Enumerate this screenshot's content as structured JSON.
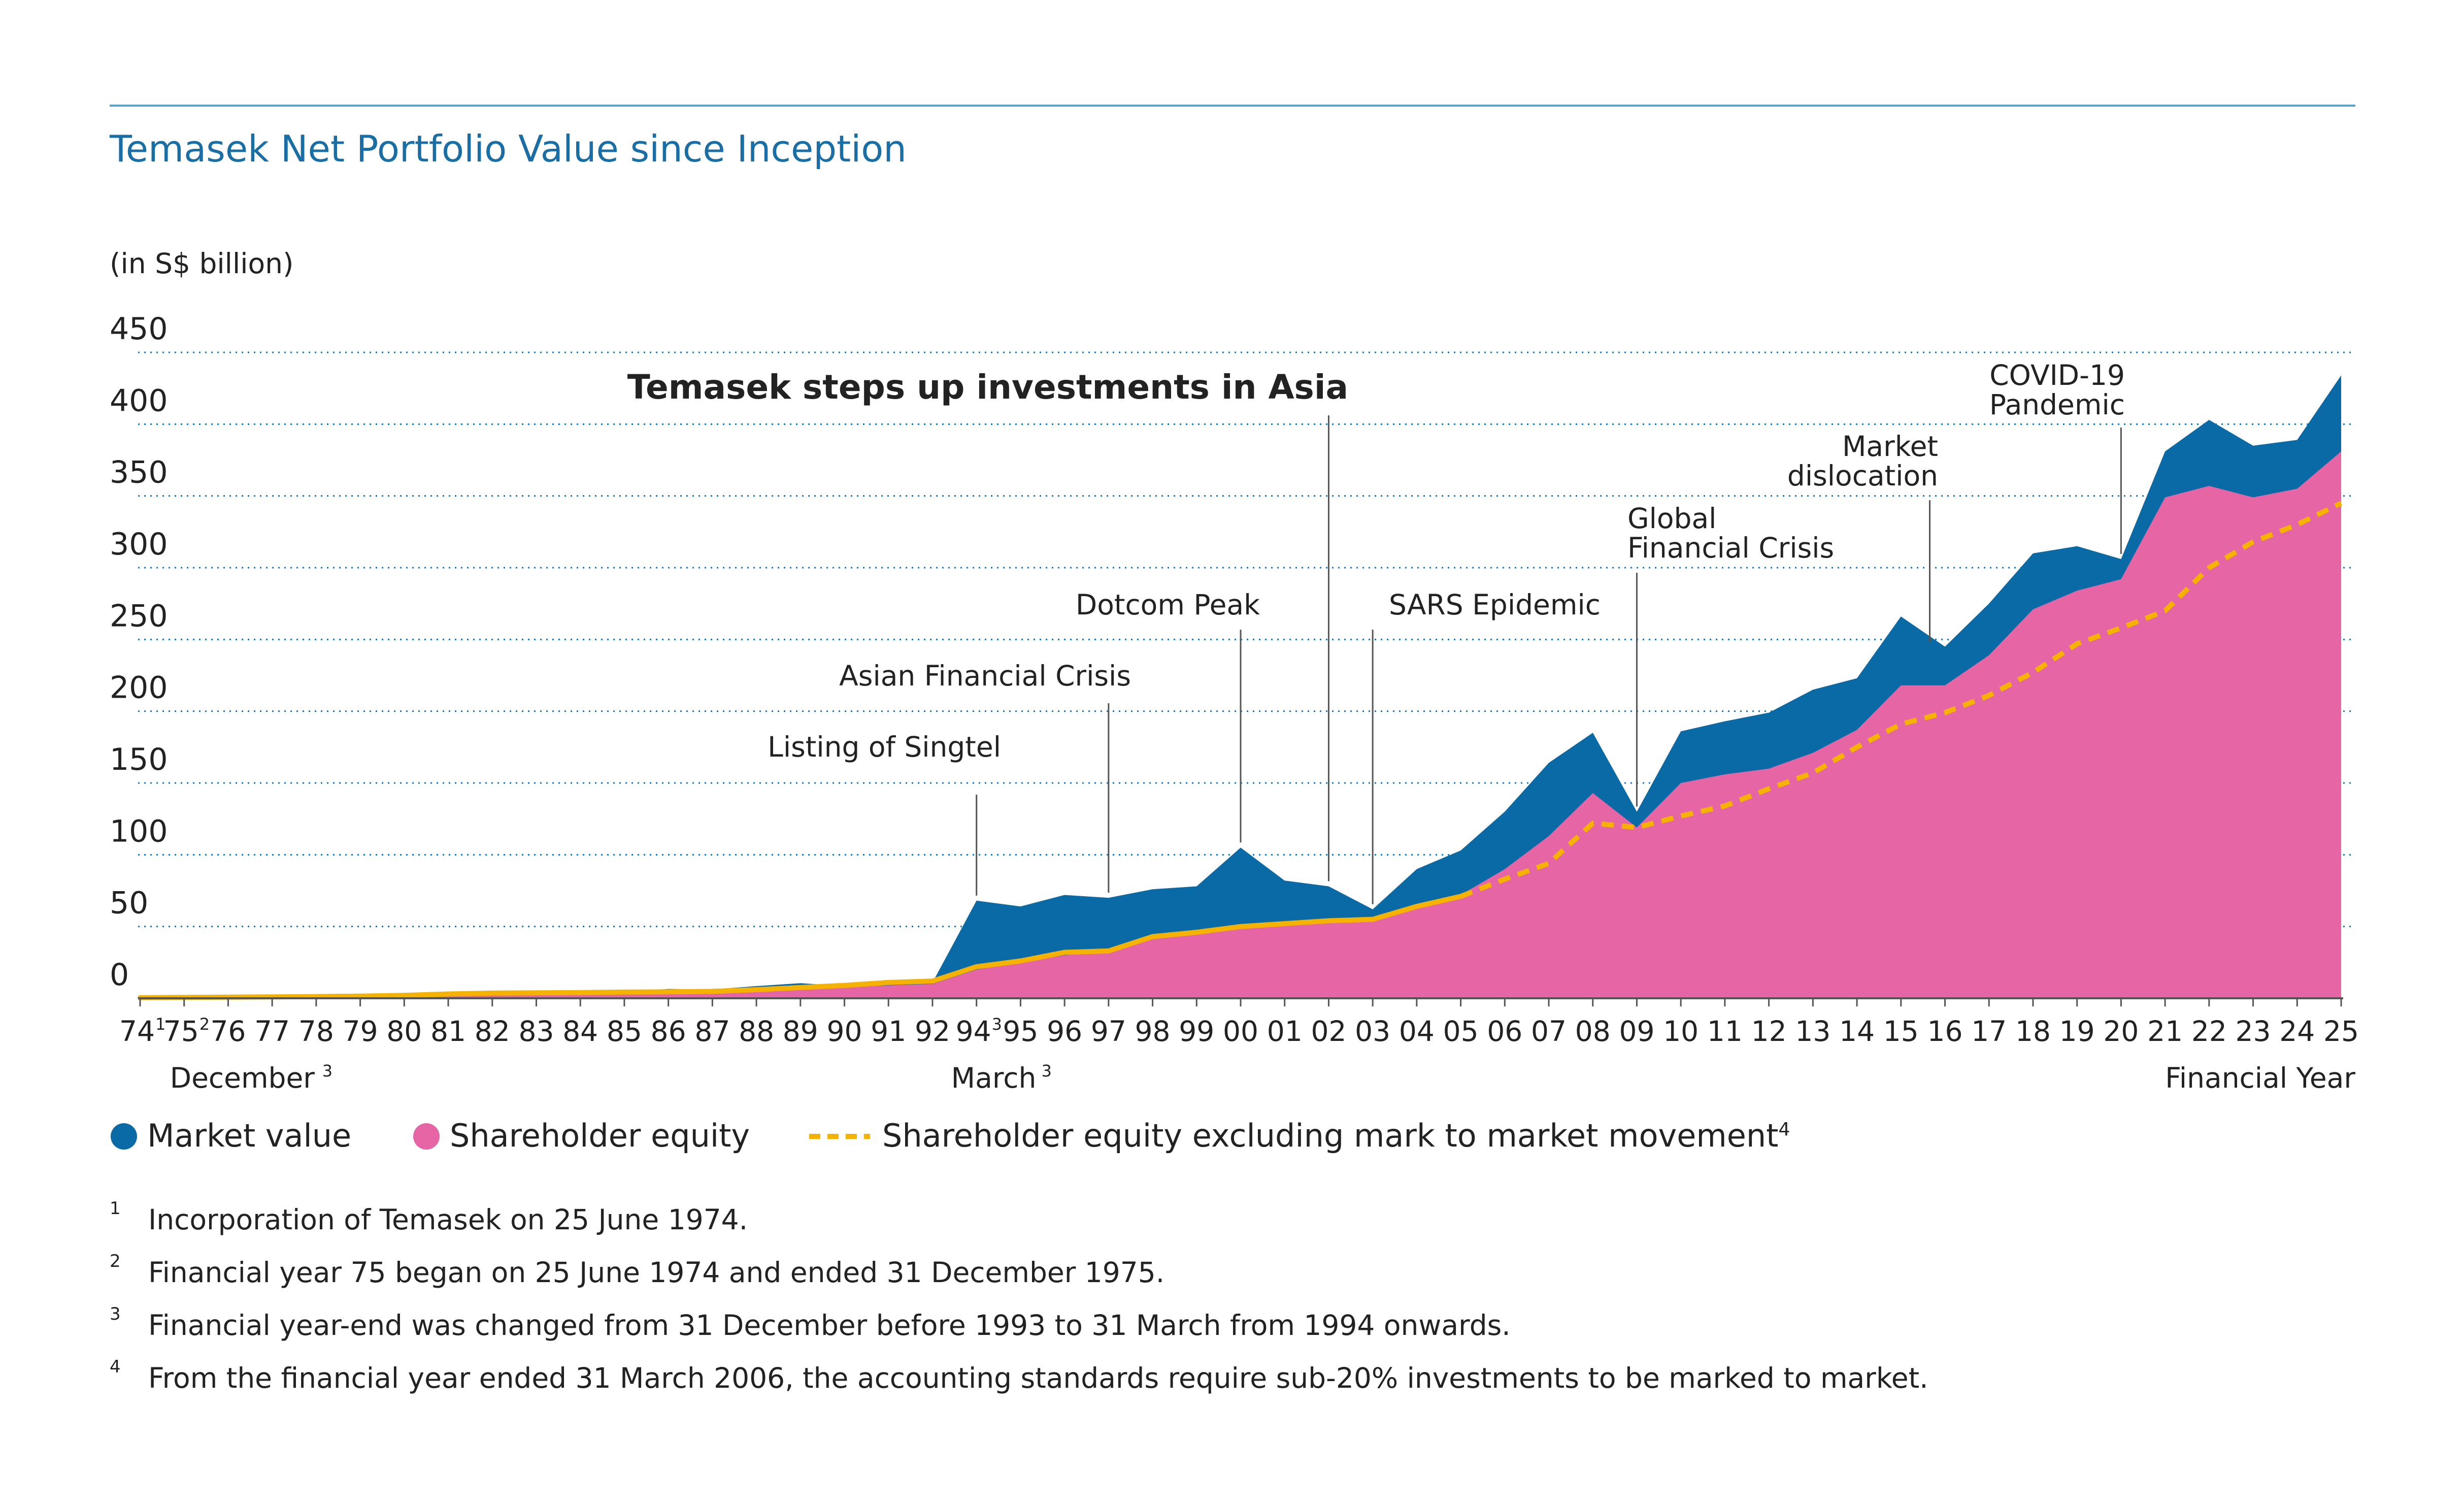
{
  "chart_data": {
    "type": "area",
    "title": "Temasek Net Portfolio Value since Inception",
    "unit_label": "(in S$ billion)",
    "ylim": [
      0,
      450
    ],
    "y_ticks": [
      0,
      50,
      100,
      150,
      200,
      250,
      300,
      350,
      400,
      450
    ],
    "grid": "horizontal dotted",
    "x": [
      "74",
      "75",
      "76",
      "77",
      "78",
      "79",
      "80",
      "81",
      "82",
      "83",
      "84",
      "85",
      "86",
      "87",
      "88",
      "89",
      "90",
      "91",
      "92",
      "94",
      "95",
      "96",
      "97",
      "98",
      "99",
      "00",
      "01",
      "02",
      "03",
      "04",
      "05",
      "06",
      "07",
      "08",
      "09",
      "10",
      "11",
      "12",
      "13",
      "14",
      "15",
      "16",
      "17",
      "18",
      "19",
      "20",
      "21",
      "22",
      "23",
      "24",
      "25"
    ],
    "x_superscripts": [
      {
        "label": "74",
        "sup": "1"
      },
      {
        "label": "75",
        "sup": "2"
      },
      {
        "label": "94",
        "sup": "3"
      }
    ],
    "x_groups": {
      "december": {
        "label": "December",
        "sup": "3"
      },
      "march": {
        "label": "March",
        "sup": "3"
      },
      "end": "Financial Year"
    },
    "series": [
      {
        "name": "Market value",
        "color": "#0a6aa6",
        "values": [
          0.4,
          0.6,
          0.8,
          1,
          1.2,
          1.5,
          2,
          2.5,
          3,
          3.5,
          3.8,
          4.5,
          6.5,
          6.2,
          8.5,
          10.5,
          8.5,
          10,
          11,
          68,
          64,
          72,
          70,
          76,
          78,
          105,
          82,
          78,
          62,
          90,
          103,
          130,
          164,
          185,
          130,
          186,
          193,
          199,
          215,
          223,
          266,
          245,
          275,
          310,
          315,
          306,
          381,
          403,
          385,
          389,
          434
        ]
      },
      {
        "name": "Shareholder equity",
        "color": "#e565a5",
        "values": [
          0.4,
          0.6,
          0.8,
          1,
          1.2,
          1.5,
          2,
          2.5,
          3,
          3.3,
          3.6,
          4,
          5,
          5.5,
          6,
          7,
          8,
          9,
          10,
          20,
          25,
          30,
          33,
          43,
          47,
          50,
          52,
          54,
          56,
          65,
          72,
          90,
          113,
          143,
          119,
          150,
          156,
          160,
          171,
          187,
          218,
          218,
          239,
          271,
          284,
          292,
          349,
          357,
          349,
          355,
          381
        ]
      },
      {
        "name": "Shareholder equity excluding mark to market movement",
        "sup": "4",
        "color": "#f5b200",
        "style": "dashed",
        "values": [
          0.4,
          0.6,
          0.8,
          1,
          1.2,
          1.5,
          2,
          3,
          3.6,
          3.8,
          4,
          4.3,
          4.5,
          4.8,
          6,
          7.5,
          9,
          11,
          12,
          22,
          26,
          32,
          33,
          43,
          46,
          50,
          52,
          54,
          55,
          64,
          71,
          83,
          94,
          122,
          119,
          127,
          134,
          146,
          157,
          175,
          191,
          199,
          211,
          227,
          247,
          258,
          270,
          300,
          318,
          330,
          345
        ]
      }
    ],
    "annotations": [
      {
        "text": "Listing of Singtel",
        "x": "94",
        "lines": [
          "Listing of Singtel"
        ]
      },
      {
        "text": "Asian Financial Crisis",
        "x": "97",
        "lines": [
          "Asian Financial Crisis"
        ]
      },
      {
        "text": "Dotcom Peak",
        "x": "00",
        "lines": [
          "Dotcom Peak"
        ]
      },
      {
        "text": "Temasek steps up investments in Asia",
        "x": "02",
        "lines": [
          "Temasek steps up investments in Asia"
        ],
        "bold": true
      },
      {
        "text": "SARS Epidemic",
        "x": "03",
        "lines": [
          "SARS Epidemic"
        ]
      },
      {
        "text": "Global Financial Crisis",
        "x": "09",
        "lines": [
          "Global",
          "Financial Crisis"
        ]
      },
      {
        "text": "Market dislocation",
        "x": "16",
        "lines": [
          "Market",
          "dislocation"
        ]
      },
      {
        "text": "COVID-19 Pandemic",
        "x": "20",
        "lines": [
          "COVID-19",
          "Pandemic"
        ]
      }
    ],
    "legend": [
      {
        "label": "Market value",
        "marker": "circle",
        "color": "#0a6aa6"
      },
      {
        "label": "Shareholder equity",
        "marker": "circle",
        "color": "#e565a5"
      },
      {
        "label": "Shareholder equity excluding mark to market movement",
        "sup": "4",
        "marker": "dashed-line",
        "color": "#f5b200"
      }
    ],
    "legend_position": "bottom-left"
  },
  "footnotes": [
    {
      "num": "1",
      "text": "Incorporation of Temasek on 25 June 1974."
    },
    {
      "num": "2",
      "text": "Financial year 75 began on 25 June 1974 and ended 31 December 1975."
    },
    {
      "num": "3",
      "text": "Financial year-end was changed from 31 December before 1993 to 31 March from 1994 onwards."
    },
    {
      "num": "4",
      "text": "From the financial year ended 31 March 2006, the accounting standards require sub-20% investments to be marked to market."
    }
  ],
  "colors": {
    "title": "#1a6ea6",
    "rule": "#5aa3c8",
    "grid": "#1f73b0",
    "text": "#222222",
    "axis": "#555555"
  }
}
